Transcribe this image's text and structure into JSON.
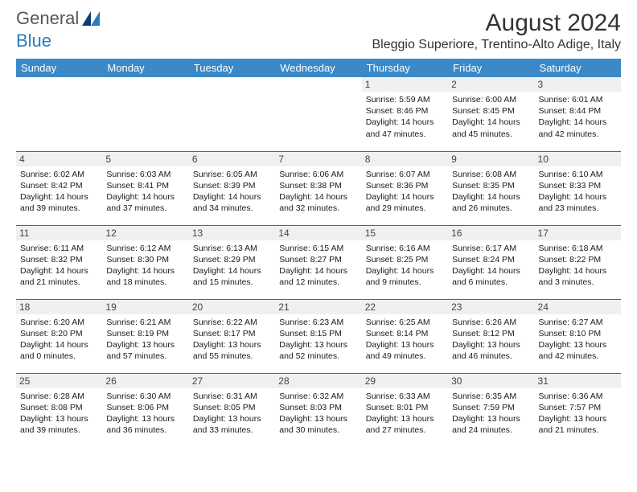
{
  "brand": {
    "part1": "General",
    "part2": "Blue"
  },
  "title": "August 2024",
  "location": "Bleggio Superiore, Trentino-Alto Adige, Italy",
  "colors": {
    "headerBg": "#3b89c7",
    "headerText": "#ffffff",
    "rowBorder": "#2f6fa8",
    "dayBg": "#eef0f2",
    "brandGray": "#555555",
    "brandBlue": "#2b7bbf"
  },
  "weekdays": [
    "Sunday",
    "Monday",
    "Tuesday",
    "Wednesday",
    "Thursday",
    "Friday",
    "Saturday"
  ],
  "weeks": [
    [
      null,
      null,
      null,
      null,
      {
        "d": "1",
        "sr": "5:59 AM",
        "ss": "8:46 PM",
        "dl": "14 hours and 47 minutes."
      },
      {
        "d": "2",
        "sr": "6:00 AM",
        "ss": "8:45 PM",
        "dl": "14 hours and 45 minutes."
      },
      {
        "d": "3",
        "sr": "6:01 AM",
        "ss": "8:44 PM",
        "dl": "14 hours and 42 minutes."
      }
    ],
    [
      {
        "d": "4",
        "sr": "6:02 AM",
        "ss": "8:42 PM",
        "dl": "14 hours and 39 minutes."
      },
      {
        "d": "5",
        "sr": "6:03 AM",
        "ss": "8:41 PM",
        "dl": "14 hours and 37 minutes."
      },
      {
        "d": "6",
        "sr": "6:05 AM",
        "ss": "8:39 PM",
        "dl": "14 hours and 34 minutes."
      },
      {
        "d": "7",
        "sr": "6:06 AM",
        "ss": "8:38 PM",
        "dl": "14 hours and 32 minutes."
      },
      {
        "d": "8",
        "sr": "6:07 AM",
        "ss": "8:36 PM",
        "dl": "14 hours and 29 minutes."
      },
      {
        "d": "9",
        "sr": "6:08 AM",
        "ss": "8:35 PM",
        "dl": "14 hours and 26 minutes."
      },
      {
        "d": "10",
        "sr": "6:10 AM",
        "ss": "8:33 PM",
        "dl": "14 hours and 23 minutes."
      }
    ],
    [
      {
        "d": "11",
        "sr": "6:11 AM",
        "ss": "8:32 PM",
        "dl": "14 hours and 21 minutes."
      },
      {
        "d": "12",
        "sr": "6:12 AM",
        "ss": "8:30 PM",
        "dl": "14 hours and 18 minutes."
      },
      {
        "d": "13",
        "sr": "6:13 AM",
        "ss": "8:29 PM",
        "dl": "14 hours and 15 minutes."
      },
      {
        "d": "14",
        "sr": "6:15 AM",
        "ss": "8:27 PM",
        "dl": "14 hours and 12 minutes."
      },
      {
        "d": "15",
        "sr": "6:16 AM",
        "ss": "8:25 PM",
        "dl": "14 hours and 9 minutes."
      },
      {
        "d": "16",
        "sr": "6:17 AM",
        "ss": "8:24 PM",
        "dl": "14 hours and 6 minutes."
      },
      {
        "d": "17",
        "sr": "6:18 AM",
        "ss": "8:22 PM",
        "dl": "14 hours and 3 minutes."
      }
    ],
    [
      {
        "d": "18",
        "sr": "6:20 AM",
        "ss": "8:20 PM",
        "dl": "14 hours and 0 minutes."
      },
      {
        "d": "19",
        "sr": "6:21 AM",
        "ss": "8:19 PM",
        "dl": "13 hours and 57 minutes."
      },
      {
        "d": "20",
        "sr": "6:22 AM",
        "ss": "8:17 PM",
        "dl": "13 hours and 55 minutes."
      },
      {
        "d": "21",
        "sr": "6:23 AM",
        "ss": "8:15 PM",
        "dl": "13 hours and 52 minutes."
      },
      {
        "d": "22",
        "sr": "6:25 AM",
        "ss": "8:14 PM",
        "dl": "13 hours and 49 minutes."
      },
      {
        "d": "23",
        "sr": "6:26 AM",
        "ss": "8:12 PM",
        "dl": "13 hours and 46 minutes."
      },
      {
        "d": "24",
        "sr": "6:27 AM",
        "ss": "8:10 PM",
        "dl": "13 hours and 42 minutes."
      }
    ],
    [
      {
        "d": "25",
        "sr": "6:28 AM",
        "ss": "8:08 PM",
        "dl": "13 hours and 39 minutes."
      },
      {
        "d": "26",
        "sr": "6:30 AM",
        "ss": "8:06 PM",
        "dl": "13 hours and 36 minutes."
      },
      {
        "d": "27",
        "sr": "6:31 AM",
        "ss": "8:05 PM",
        "dl": "13 hours and 33 minutes."
      },
      {
        "d": "28",
        "sr": "6:32 AM",
        "ss": "8:03 PM",
        "dl": "13 hours and 30 minutes."
      },
      {
        "d": "29",
        "sr": "6:33 AM",
        "ss": "8:01 PM",
        "dl": "13 hours and 27 minutes."
      },
      {
        "d": "30",
        "sr": "6:35 AM",
        "ss": "7:59 PM",
        "dl": "13 hours and 24 minutes."
      },
      {
        "d": "31",
        "sr": "6:36 AM",
        "ss": "7:57 PM",
        "dl": "13 hours and 21 minutes."
      }
    ]
  ],
  "labels": {
    "sunrise": "Sunrise:",
    "sunset": "Sunset:",
    "daylight": "Daylight:"
  }
}
